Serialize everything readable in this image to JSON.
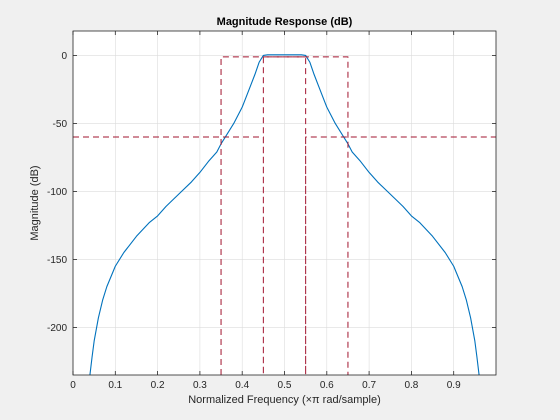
{
  "chart_data": {
    "type": "line",
    "title": "Magnitude Response (dB)",
    "xlabel": "Normalized Frequency (×π rad/sample)",
    "ylabel": "Magnitude (dB)",
    "xlim": [
      0,
      1
    ],
    "ylim": [
      -235,
      18
    ],
    "grid": true,
    "legend": "none",
    "x_ticks": [
      0,
      0.1,
      0.2,
      0.3,
      0.4,
      0.5,
      0.6,
      0.7,
      0.8,
      0.9
    ],
    "x_tick_labels": [
      "0",
      "0.1",
      "0.2",
      "0.3",
      "0.4",
      "0.5",
      "0.6",
      "0.7",
      "0.8",
      "0.9"
    ],
    "y_ticks": [
      0,
      -50,
      -100,
      -150,
      -200
    ],
    "y_tick_labels": [
      "0",
      "-50",
      "-100",
      "-150",
      "-200"
    ],
    "series": [
      {
        "color": "#0072BD",
        "style": "solid",
        "points": [
          [
            0.04,
            -235
          ],
          [
            0.045,
            -222
          ],
          [
            0.05,
            -210
          ],
          [
            0.06,
            -193
          ],
          [
            0.07,
            -180
          ],
          [
            0.08,
            -170
          ],
          [
            0.1,
            -155
          ],
          [
            0.12,
            -145
          ],
          [
            0.15,
            -133
          ],
          [
            0.18,
            -123
          ],
          [
            0.2,
            -118
          ],
          [
            0.22,
            -111
          ],
          [
            0.25,
            -102
          ],
          [
            0.28,
            -93
          ],
          [
            0.3,
            -86
          ],
          [
            0.32,
            -78
          ],
          [
            0.34,
            -71
          ],
          [
            0.35,
            -65
          ],
          [
            0.36,
            -60
          ],
          [
            0.38,
            -50
          ],
          [
            0.4,
            -38
          ],
          [
            0.42,
            -22
          ],
          [
            0.43,
            -14
          ],
          [
            0.44,
            -5
          ],
          [
            0.45,
            0
          ],
          [
            0.46,
            0.5
          ],
          [
            0.48,
            0.5
          ],
          [
            0.5,
            0.5
          ],
          [
            0.52,
            0.5
          ],
          [
            0.54,
            0.5
          ],
          [
            0.55,
            0
          ],
          [
            0.56,
            -5
          ],
          [
            0.57,
            -14
          ],
          [
            0.58,
            -22
          ],
          [
            0.6,
            -38
          ],
          [
            0.62,
            -50
          ],
          [
            0.64,
            -60
          ],
          [
            0.65,
            -65
          ],
          [
            0.66,
            -71
          ],
          [
            0.68,
            -78
          ],
          [
            0.7,
            -86
          ],
          [
            0.72,
            -93
          ],
          [
            0.75,
            -102
          ],
          [
            0.78,
            -111
          ],
          [
            0.8,
            -118
          ],
          [
            0.82,
            -123
          ],
          [
            0.85,
            -133
          ],
          [
            0.88,
            -145
          ],
          [
            0.9,
            -155
          ],
          [
            0.92,
            -170
          ],
          [
            0.93,
            -180
          ],
          [
            0.94,
            -193
          ],
          [
            0.95,
            -210
          ],
          [
            0.955,
            -222
          ],
          [
            0.96,
            -235
          ]
        ]
      },
      {
        "color": "#A2142F",
        "style": "dashed",
        "points": [
          [
            0,
            -60
          ],
          [
            0.45,
            -60
          ],
          [
            0.45,
            -235
          ],
          [
            0.45,
            -60
          ],
          [
            0.45,
            -1
          ],
          [
            0.55,
            -1
          ],
          [
            0.55,
            -60
          ],
          [
            0.55,
            -235
          ],
          [
            0.55,
            -60
          ],
          [
            1,
            -60
          ]
        ]
      },
      {
        "color": "#A2142F",
        "style": "dashed",
        "points": [
          [
            0.35,
            -235
          ],
          [
            0.35,
            -1
          ],
          [
            0.65,
            -1
          ],
          [
            0.65,
            -235
          ]
        ]
      }
    ]
  }
}
